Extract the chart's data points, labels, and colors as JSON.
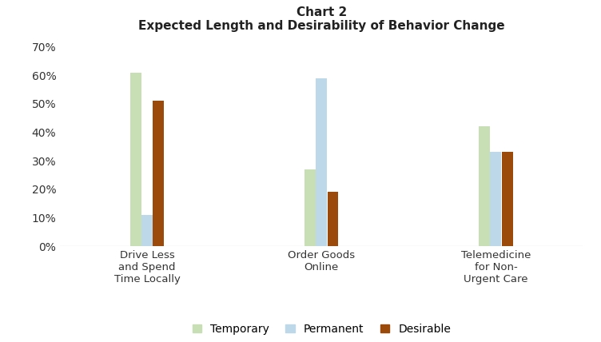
{
  "title_line1": "Chart 2",
  "title_line2": "Expected Length and Desirability of Behavior Change",
  "categories": [
    "Drive Less\nand Spend\nTime Locally",
    "Order Goods\nOnline",
    "Telemedicine\nfor Non-\nUrgent Care"
  ],
  "series": {
    "Temporary": [
      0.61,
      0.27,
      0.42
    ],
    "Permanent": [
      0.11,
      0.59,
      0.33
    ],
    "Desirable": [
      0.51,
      0.19,
      0.33
    ]
  },
  "colors": {
    "Temporary": "#c8deb5",
    "Permanent": "#bdd8e8",
    "Desirable": "#9b4a0c"
  },
  "ylim": [
    0,
    0.72
  ],
  "yticks": [
    0.0,
    0.1,
    0.2,
    0.3,
    0.4,
    0.5,
    0.6,
    0.7
  ],
  "bar_width": 0.13,
  "group_centers": [
    0.18,
    0.52,
    0.82
  ],
  "background_color": "#ffffff",
  "legend_labels": [
    "Temporary",
    "Permanent",
    "Desirable"
  ]
}
